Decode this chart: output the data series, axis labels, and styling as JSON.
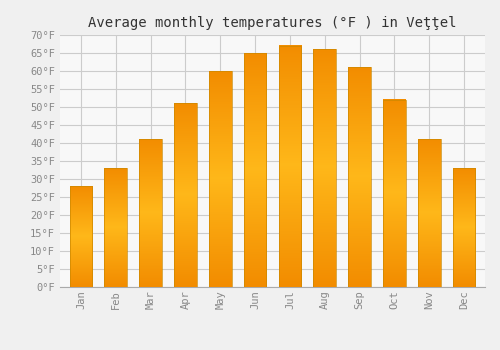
{
  "title": "Average monthly temperatures (°F ) in Veţţel",
  "months": [
    "Jan",
    "Feb",
    "Mar",
    "Apr",
    "May",
    "Jun",
    "Jul",
    "Aug",
    "Sep",
    "Oct",
    "Nov",
    "Dec"
  ],
  "values": [
    28,
    33,
    41,
    51,
    60,
    65,
    67,
    66,
    61,
    52,
    41,
    33
  ],
  "bar_color": "#FFAA00",
  "bar_color_light": "#FFD060",
  "ylim": [
    0,
    70
  ],
  "yticks": [
    0,
    5,
    10,
    15,
    20,
    25,
    30,
    35,
    40,
    45,
    50,
    55,
    60,
    65,
    70
  ],
  "ytick_labels": [
    "0°F",
    "5°F",
    "10°F",
    "15°F",
    "20°F",
    "25°F",
    "30°F",
    "35°F",
    "40°F",
    "45°F",
    "50°F",
    "55°F",
    "60°F",
    "65°F",
    "70°F"
  ],
  "background_color": "#f0f0f0",
  "plot_bg_color": "#f8f8f8",
  "grid_color": "#cccccc",
  "title_fontsize": 10,
  "tick_fontsize": 7.5,
  "font_family": "monospace",
  "tick_color": "#888888"
}
